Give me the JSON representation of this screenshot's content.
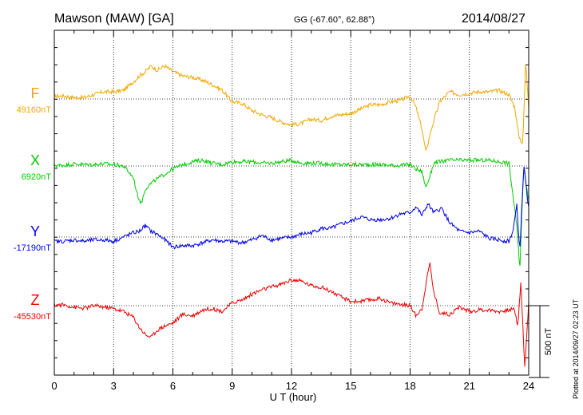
{
  "header": {
    "station": "Mawson (MAW)  [GA]",
    "coords": "GG (-67.60°,  62.88°)",
    "date": "2014/08/27"
  },
  "side_note": "Plotted at 2014/09/27 02:23 UT",
  "scale_label": "500 nT",
  "chart_data": {
    "type": "line",
    "title": "Mawson (MAW)  [GA]",
    "xlabel": "U T (hour)",
    "ylabel": "",
    "xlim": [
      0,
      24
    ],
    "x_ticks": [
      0,
      3,
      6,
      9,
      12,
      15,
      18,
      21,
      24
    ],
    "x_tick_labels": [
      "0",
      "3",
      "6",
      "9",
      "12",
      "15",
      "18",
      "21",
      "24"
    ],
    "scale_bar_nT": 500,
    "grid": true,
    "series": [
      {
        "name": "F",
        "baseline_label": "49160nT",
        "baseline_nT": 49160,
        "color": "#f0a800",
        "x": [
          0,
          0.5,
          1,
          1.5,
          2,
          2.5,
          3,
          3.5,
          4,
          4.3,
          4.6,
          4.9,
          5.2,
          5.6,
          6,
          6.5,
          7,
          7.5,
          8,
          8.5,
          9,
          9.5,
          10,
          10.5,
          11,
          11.5,
          12,
          12.5,
          13,
          13.5,
          14,
          14.5,
          15,
          15.5,
          16,
          16.5,
          17,
          17.5,
          18,
          18.3,
          18.6,
          18.8,
          19,
          19.2,
          19.5,
          20,
          20.5,
          21,
          21.5,
          22,
          22.5,
          23,
          23.3,
          23.5,
          23.7,
          23.85,
          24
        ],
        "values": [
          20,
          20,
          10,
          10,
          30,
          50,
          50,
          60,
          120,
          160,
          190,
          230,
          200,
          230,
          190,
          160,
          150,
          130,
          100,
          60,
          -20,
          -30,
          -80,
          -110,
          -130,
          -160,
          -180,
          -170,
          -140,
          -150,
          -120,
          -110,
          -100,
          -70,
          -40,
          -40,
          -20,
          -10,
          20,
          -60,
          -210,
          -370,
          -250,
          -150,
          -20,
          50,
          30,
          40,
          50,
          50,
          60,
          30,
          -60,
          -260,
          -310,
          270,
          -50
        ]
      },
      {
        "name": "X",
        "baseline_label": "6920nT",
        "baseline_nT": 6920,
        "color": "#00cc00",
        "x": [
          0,
          0.5,
          1,
          1.5,
          2,
          2.5,
          3,
          3.5,
          4,
          4.2,
          4.4,
          4.6,
          4.9,
          5.2,
          6,
          6.5,
          7,
          7.5,
          8,
          8.5,
          9,
          9.5,
          10,
          10.5,
          11,
          11.5,
          12,
          12.5,
          13,
          13.5,
          14,
          14.5,
          15,
          15.5,
          16,
          16.5,
          17,
          17.5,
          18,
          18.3,
          18.6,
          18.8,
          19,
          19.2,
          19.5,
          20,
          21,
          22,
          22.5,
          23,
          23.2,
          23.4,
          23.55,
          23.75,
          24
        ],
        "values": [
          5,
          5,
          15,
          10,
          10,
          15,
          10,
          0,
          -80,
          -200,
          -260,
          -160,
          -120,
          -90,
          -20,
          10,
          30,
          40,
          20,
          10,
          30,
          30,
          30,
          20,
          20,
          30,
          40,
          20,
          20,
          20,
          10,
          10,
          10,
          10,
          10,
          10,
          5,
          5,
          10,
          -20,
          -40,
          -150,
          -70,
          20,
          30,
          40,
          40,
          40,
          30,
          20,
          -200,
          -420,
          -720,
          10,
          -250
        ]
      },
      {
        "name": "Y",
        "baseline_label": "-17190nT",
        "baseline_nT": -17190,
        "color": "#0000ee",
        "x": [
          0,
          0.5,
          1,
          1.5,
          2,
          2.5,
          3,
          3.5,
          4,
          4.3,
          4.6,
          4.9,
          5.2,
          5.6,
          6,
          6.5,
          7,
          7.5,
          8,
          8.5,
          9,
          9.5,
          10,
          10.5,
          11,
          11.5,
          12,
          12.5,
          13,
          13.5,
          14,
          14.5,
          15,
          15.5,
          16,
          16.5,
          17,
          17.5,
          18,
          18.3,
          18.6,
          18.9,
          19.2,
          19.6,
          20,
          20.5,
          21,
          21.5,
          22,
          22.5,
          23,
          23.2,
          23.4,
          23.55,
          23.75,
          24
        ],
        "values": [
          -30,
          -30,
          -20,
          -30,
          -20,
          -20,
          -30,
          0,
          30,
          40,
          80,
          40,
          20,
          -20,
          -70,
          -60,
          -60,
          -40,
          -20,
          -30,
          -30,
          -40,
          -20,
          10,
          -20,
          -10,
          0,
          20,
          30,
          60,
          60,
          90,
          110,
          140,
          120,
          120,
          130,
          160,
          170,
          210,
          150,
          230,
          170,
          200,
          100,
          40,
          30,
          40,
          -10,
          -20,
          -30,
          40,
          220,
          -100,
          500,
          200
        ]
      },
      {
        "name": "Z",
        "baseline_label": "-45530nT",
        "baseline_nT": -45530,
        "color": "#ee0000",
        "x": [
          0,
          0.5,
          1,
          1.5,
          2,
          2.5,
          3,
          3.5,
          4,
          4.3,
          4.6,
          4.9,
          5.2,
          5.6,
          6,
          6.5,
          7,
          7.5,
          8,
          8.5,
          9,
          9.5,
          10,
          10.5,
          11,
          11.5,
          12,
          12.5,
          13,
          13.5,
          14,
          14.5,
          15,
          15.5,
          16,
          16.5,
          17,
          17.5,
          18,
          18.3,
          18.6,
          18.8,
          19,
          19.2,
          19.5,
          20,
          20.5,
          21,
          21.5,
          22,
          22.5,
          23,
          23.25,
          23.45,
          23.6,
          23.8,
          24
        ],
        "values": [
          5,
          5,
          -10,
          -20,
          0,
          -10,
          -20,
          -40,
          -80,
          -150,
          -200,
          -220,
          -170,
          -140,
          -120,
          -60,
          -70,
          -30,
          -20,
          -40,
          20,
          40,
          80,
          110,
          130,
          150,
          180,
          170,
          140,
          130,
          100,
          60,
          30,
          30,
          40,
          50,
          20,
          10,
          0,
          -70,
          -20,
          150,
          300,
          90,
          -50,
          -60,
          -10,
          -40,
          -30,
          -30,
          -40,
          -30,
          -20,
          -140,
          160,
          -430,
          20
        ]
      }
    ]
  }
}
